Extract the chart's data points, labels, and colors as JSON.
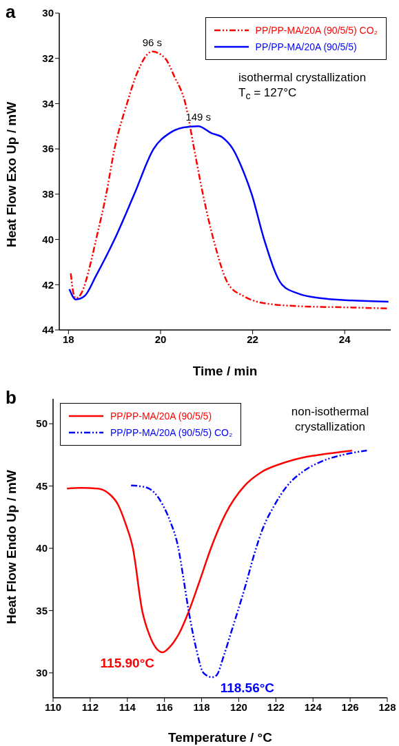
{
  "chart_data": [
    {
      "type": "line",
      "title": "a",
      "xlabel": "Time / min",
      "ylabel": "Heat Flow Exo Up / mW",
      "xlim": [
        17.8,
        25
      ],
      "xticks": [
        18,
        20,
        22,
        24
      ],
      "ylim": [
        44,
        30
      ],
      "yticks": [
        30,
        32,
        34,
        36,
        38,
        40,
        42,
        44
      ],
      "legend": "top right",
      "marker": "none",
      "series": [
        {
          "name": "PP/PP-MA/20A (90/5/5) CO₂",
          "color": "#ff0000",
          "line_style": "dashed",
          "x": [
            18.05,
            18.1,
            18.16,
            18.3,
            18.45,
            18.6,
            18.82,
            19.0,
            19.27,
            19.5,
            19.82,
            20.1,
            20.3,
            20.54,
            20.73,
            20.92,
            21.15,
            21.48,
            21.8,
            22.2,
            23.0,
            24.0,
            24.95
          ],
          "values": [
            41.5,
            42.3,
            42.6,
            42.3,
            41.3,
            40.0,
            38.0,
            36.0,
            34.0,
            32.6,
            31.7,
            32.0,
            32.8,
            34.0,
            36.0,
            38.0,
            40.0,
            42.0,
            42.5,
            42.8,
            42.95,
            43.0,
            43.05
          ]
        },
        {
          "name": "PP/PP-MA/20A (90/5/5)",
          "color": "#0000ff",
          "line_style": "solid",
          "x": [
            18.02,
            18.16,
            18.35,
            18.6,
            19.0,
            19.43,
            19.85,
            20.2,
            20.5,
            20.82,
            21.1,
            21.35,
            21.57,
            21.8,
            21.98,
            22.25,
            22.64,
            23.0,
            23.5,
            24.0,
            24.95
          ],
          "values": [
            42.2,
            42.65,
            42.5,
            41.6,
            40.0,
            38.0,
            36.0,
            35.3,
            35.05,
            35.0,
            35.3,
            35.5,
            36.0,
            37.0,
            38.0,
            40.0,
            42.0,
            42.4,
            42.6,
            42.68,
            42.75
          ]
        }
      ],
      "annotations": [
        {
          "text": "96 s",
          "x": 19.82,
          "y": 31.7
        },
        {
          "text": "149 s",
          "x": 20.82,
          "y": 35.0
        },
        "isothermal crystallization",
        "T$_{c}$ = 127°C"
      ]
    },
    {
      "type": "line",
      "title": "b",
      "xlabel": "Temperature / °C",
      "ylabel": "Heat Flow Endo Up / mW",
      "xlim": [
        110,
        128
      ],
      "xticks": [
        110,
        112,
        114,
        116,
        118,
        120,
        122,
        124,
        126,
        128
      ],
      "ylim": [
        28,
        52
      ],
      "yticks": [
        30,
        35,
        40,
        45,
        50
      ],
      "legend": "top left",
      "marker": "none",
      "series": [
        {
          "name": "PP/PP-MA/20A (90/5/5)",
          "color": "#ff0000",
          "line_style": "solid",
          "x": [
            110.75,
            111.5,
            112.4,
            113.0,
            113.5,
            113.9,
            114.3,
            114.8,
            115.2,
            115.6,
            115.9,
            116.3,
            116.8,
            117.3,
            117.9,
            118.5,
            119.3,
            120.3,
            121.2,
            122.3,
            123.5,
            124.8,
            126.1
          ],
          "values": [
            44.8,
            44.85,
            44.8,
            44.4,
            43.5,
            42.0,
            40.0,
            35.0,
            33.0,
            31.9,
            31.65,
            32.1,
            33.2,
            34.9,
            37.4,
            40.0,
            42.8,
            45.0,
            46.1,
            46.8,
            47.3,
            47.6,
            47.85
          ]
        },
        {
          "name": "PP/PP-MA/20A (90/5/5) CO₂",
          "color": "#0000ff",
          "line_style": "dashed",
          "x": [
            114.2,
            115.0,
            115.5,
            115.9,
            116.3,
            116.75,
            117.0,
            117.3,
            117.7,
            118.1,
            118.56,
            118.8,
            119.2,
            119.6,
            120.0,
            120.4,
            120.85,
            121.3,
            121.9,
            122.6,
            123.5,
            124.5,
            125.6,
            126.9
          ],
          "values": [
            45.05,
            44.9,
            44.4,
            43.5,
            42.2,
            40.0,
            37.8,
            35.0,
            32.0,
            30.0,
            29.65,
            29.8,
            31.4,
            33.3,
            35.2,
            37.2,
            39.6,
            41.6,
            43.4,
            45.0,
            46.2,
            47.0,
            47.5,
            47.85
          ]
        }
      ],
      "annotations": [
        {
          "text": "115.90°C",
          "x": 115.9,
          "y": 31.65
        },
        {
          "text": "118.56°C",
          "x": 118.56,
          "y": 29.65
        },
        "non-isothermal crystallization"
      ]
    }
  ]
}
